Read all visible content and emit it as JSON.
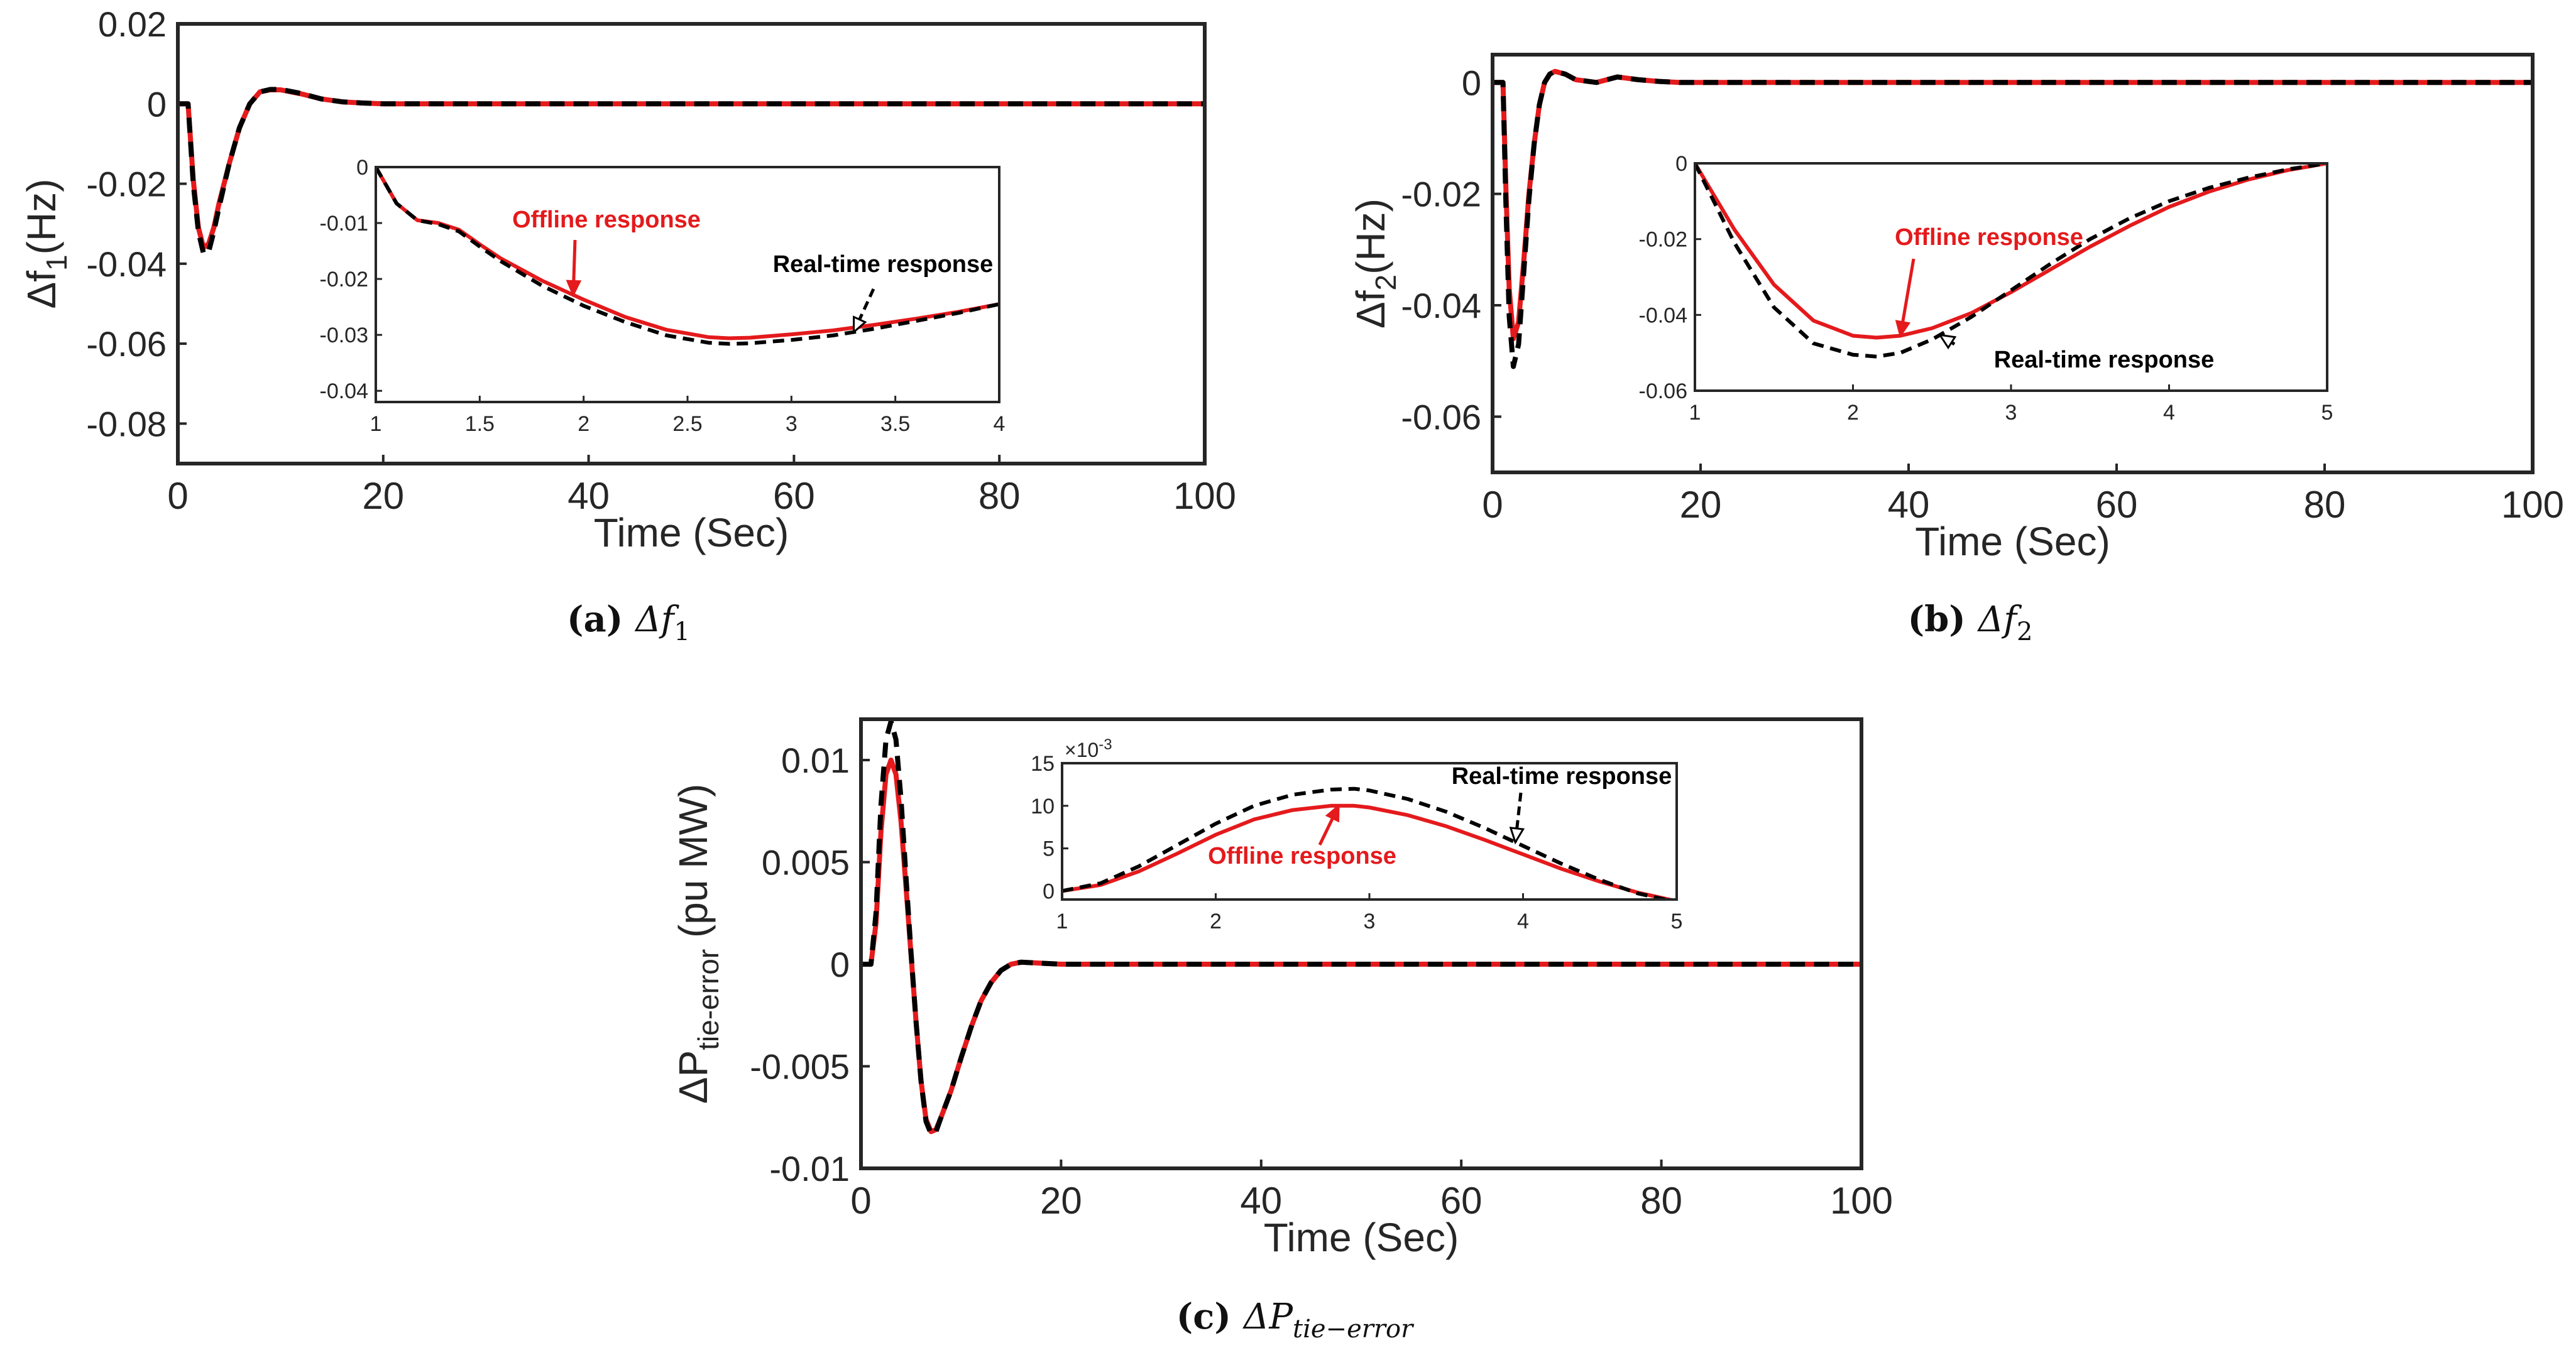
{
  "figure": {
    "colors": {
      "offline": "#e41a1c",
      "realtime": "#000000",
      "axis": "#262626"
    },
    "series_names": {
      "offline": "Offline response",
      "realtime": "Real-time response"
    }
  },
  "chart_data": [
    {
      "id": "a",
      "type": "line",
      "caption": {
        "label": "(a)",
        "symbol": "Δf",
        "sub": "1",
        "italic": true
      },
      "main": {
        "xlabel": "Time (Sec)",
        "ylabel": "Δf",
        "ylabel_sub": "1",
        "ylabel_suffix": "(Hz)",
        "xlim": [
          0,
          100
        ],
        "ylim": [
          -0.09,
          0.02
        ],
        "xticks": [
          0,
          20,
          40,
          60,
          80,
          100
        ],
        "yticks": [
          0.02,
          0,
          -0.02,
          -0.04,
          -0.06,
          -0.08
        ],
        "ytick_labels": [
          "0.02",
          "0",
          "-0.02",
          "-0.04",
          "-0.06",
          "-0.08"
        ],
        "series": [
          {
            "name": "Offline response",
            "x": [
              0,
              1,
              1.5,
              2,
              2.5,
              3,
              3.5,
              4,
              5,
              6,
              7,
              8,
              9,
              10,
              12,
              14,
              16,
              18,
              20,
              100
            ],
            "y": [
              0,
              0,
              -0.019,
              -0.031,
              -0.036,
              -0.035,
              -0.031,
              -0.025,
              -0.015,
              -0.006,
              0.0,
              0.003,
              0.0035,
              0.0035,
              0.0025,
              0.0012,
              0.0005,
              0.0002,
              0.0,
              0.0
            ]
          },
          {
            "name": "Real-time response",
            "x": [
              0,
              1,
              1.5,
              2,
              2.5,
              3,
              3.5,
              4,
              5,
              6,
              7,
              8,
              9,
              10,
              12,
              14,
              16,
              18,
              20,
              100
            ],
            "y": [
              0,
              0,
              -0.02,
              -0.032,
              -0.0375,
              -0.037,
              -0.032,
              -0.026,
              -0.015,
              -0.006,
              0.0,
              0.003,
              0.0036,
              0.0036,
              0.0026,
              0.0012,
              0.0005,
              0.0002,
              0.0,
              0.0
            ]
          }
        ]
      },
      "inset": {
        "xlim": [
          1,
          4
        ],
        "ylim": [
          -0.042,
          0
        ],
        "xticks": [
          1,
          1.5,
          2,
          2.5,
          3,
          3.5,
          4
        ],
        "xtick_labels": [
          "1",
          "1.5",
          "2",
          "2.5",
          "3",
          "3.5",
          "4"
        ],
        "yticks": [
          0,
          -0.01,
          -0.02,
          -0.03,
          -0.04
        ],
        "ytick_labels": [
          "0",
          "-0.01",
          "-0.02",
          "-0.03",
          "-0.04"
        ],
        "series": [
          {
            "name": "Offline response",
            "x": [
              1,
              1.1,
              1.2,
              1.3,
              1.4,
              1.5,
              1.6,
              1.8,
              2.0,
              2.2,
              2.4,
              2.6,
              2.7,
              2.8,
              3.0,
              3.2,
              3.4,
              3.6,
              3.8,
              4.0
            ],
            "y": [
              0,
              -0.0065,
              -0.0095,
              -0.01,
              -0.0112,
              -0.0138,
              -0.0163,
              -0.0203,
              -0.0237,
              -0.0268,
              -0.0291,
              -0.0304,
              -0.0306,
              -0.0305,
              -0.0299,
              -0.0292,
              -0.0282,
              -0.0271,
              -0.0259,
              -0.0245
            ]
          },
          {
            "name": "Real-time response",
            "x": [
              1,
              1.1,
              1.2,
              1.3,
              1.4,
              1.5,
              1.6,
              1.8,
              2.0,
              2.2,
              2.4,
              2.6,
              2.7,
              2.8,
              3.0,
              3.2,
              3.4,
              3.6,
              3.8,
              4.0
            ],
            "y": [
              0,
              -0.0065,
              -0.0095,
              -0.0102,
              -0.0115,
              -0.0142,
              -0.0168,
              -0.0212,
              -0.0248,
              -0.0277,
              -0.0301,
              -0.0314,
              -0.0316,
              -0.0315,
              -0.0309,
              -0.0301,
              -0.0289,
              -0.0275,
              -0.0261,
              -0.0245
            ]
          }
        ],
        "annotations": [
          {
            "text": "Offline response",
            "series": "Offline response",
            "at_x": 1.95
          },
          {
            "text": "Real-time response",
            "series": "Real-time response",
            "at_x": 3.3
          }
        ]
      }
    },
    {
      "id": "b",
      "type": "line",
      "caption": {
        "label": "(b)",
        "symbol": "Δf",
        "sub": "2",
        "italic": true
      },
      "main": {
        "xlabel": "Time (Sec)",
        "ylabel": "Δf",
        "ylabel_sub": "2",
        "ylabel_suffix": "(Hz)",
        "xlim": [
          0,
          100
        ],
        "ylim": [
          -0.07,
          0.005
        ],
        "xticks": [
          0,
          20,
          40,
          60,
          80,
          100
        ],
        "yticks": [
          0,
          -0.02,
          -0.04,
          -0.06
        ],
        "ytick_labels": [
          "0",
          "-0.02",
          "-0.04",
          "-0.06"
        ],
        "series": [
          {
            "name": "Offline response",
            "x": [
              0,
              1,
              1.3,
              1.6,
              2,
              2.5,
              3,
              3.5,
              4,
              4.5,
              5,
              5.5,
              6,
              7,
              8,
              10,
              12,
              14,
              16,
              18,
              20,
              100
            ],
            "y": [
              0,
              0,
              -0.02,
              -0.037,
              -0.046,
              -0.043,
              -0.032,
              -0.02,
              -0.011,
              -0.004,
              0.0,
              0.0015,
              0.002,
              0.0015,
              0.0005,
              0.0,
              0.001,
              0.0005,
              0.0002,
              0.0,
              0.0,
              0.0
            ]
          },
          {
            "name": "Real-time response",
            "x": [
              0,
              1,
              1.3,
              1.6,
              2,
              2.5,
              3,
              3.5,
              4,
              4.5,
              5,
              5.5,
              6,
              7,
              8,
              10,
              12,
              14,
              16,
              18,
              20,
              100
            ],
            "y": [
              0,
              0,
              -0.023,
              -0.042,
              -0.051,
              -0.047,
              -0.034,
              -0.021,
              -0.011,
              -0.004,
              0.0,
              0.0015,
              0.002,
              0.0015,
              0.0005,
              0.0,
              0.001,
              0.0005,
              0.0002,
              0.0,
              0.0,
              0.0
            ]
          }
        ]
      },
      "inset": {
        "xlim": [
          1,
          5
        ],
        "ylim": [
          -0.06,
          0
        ],
        "xticks": [
          1,
          2,
          3,
          4,
          5
        ],
        "xtick_labels": [
          "1",
          "2",
          "3",
          "4",
          "5"
        ],
        "yticks": [
          0,
          -0.02,
          -0.04,
          -0.06
        ],
        "ytick_labels": [
          "0",
          "-0.02",
          "-0.04",
          "-0.06"
        ],
        "series": [
          {
            "name": "Offline response",
            "x": [
              1,
              1.25,
              1.5,
              1.75,
              2.0,
              2.15,
              2.3,
              2.5,
              2.75,
              3.0,
              3.25,
              3.5,
              3.75,
              4.0,
              4.25,
              4.5,
              4.75,
              5.0
            ],
            "y": [
              0,
              -0.0175,
              -0.032,
              -0.0415,
              -0.0455,
              -0.046,
              -0.0455,
              -0.0435,
              -0.0395,
              -0.034,
              -0.028,
              -0.022,
              -0.0165,
              -0.0115,
              -0.0075,
              -0.0043,
              -0.0018,
              0.0
            ]
          },
          {
            "name": "Real-time response",
            "x": [
              1,
              1.25,
              1.5,
              1.75,
              2.0,
              2.15,
              2.3,
              2.5,
              2.75,
              3.0,
              3.25,
              3.5,
              3.75,
              4.0,
              4.25,
              4.5,
              4.75,
              5.0
            ],
            "y": [
              0,
              -0.021,
              -0.038,
              -0.0475,
              -0.0505,
              -0.051,
              -0.05,
              -0.0465,
              -0.0405,
              -0.0335,
              -0.0265,
              -0.02,
              -0.0145,
              -0.01,
              -0.0065,
              -0.0038,
              -0.0016,
              0.0
            ]
          }
        ],
        "annotations": [
          {
            "text": "Offline response",
            "series": "Offline response",
            "at_x": 2.3
          },
          {
            "text": "Real-time response",
            "series": "Real-time response",
            "at_x": 2.55
          }
        ]
      }
    },
    {
      "id": "c",
      "type": "line",
      "caption": {
        "label": "(c)",
        "symbol": "ΔP",
        "sub": "tie−error",
        "italic": true
      },
      "main": {
        "xlabel": "Time (Sec)",
        "ylabel": "ΔP",
        "ylabel_sub": "tie-error",
        "ylabel_suffix": " (pu MW)",
        "xlim": [
          0,
          100
        ],
        "ylim": [
          -0.01,
          0.012
        ],
        "xticks": [
          0,
          20,
          40,
          60,
          80,
          100
        ],
        "yticks": [
          0.01,
          0.005,
          0,
          -0.005,
          -0.01
        ],
        "ytick_labels": [
          "0.01",
          "0.005",
          "0",
          "-0.005",
          "-0.01"
        ],
        "series": [
          {
            "name": "Offline response",
            "x": [
              0,
              1,
              1.5,
              2,
              2.5,
              3,
              3.5,
              4,
              4.5,
              5,
              5.5,
              6,
              6.5,
              7,
              7.5,
              8,
              9,
              10,
              11,
              12,
              13,
              14,
              15,
              16,
              18,
              20,
              100
            ],
            "y": [
              0,
              0,
              0.002,
              0.0065,
              0.0093,
              0.01,
              0.0093,
              0.007,
              0.0038,
              0.0005,
              -0.0028,
              -0.0057,
              -0.0076,
              -0.0082,
              -0.0081,
              -0.0075,
              -0.0062,
              -0.0046,
              -0.0031,
              -0.0018,
              -0.0009,
              -0.0003,
              0.0,
              0.0001,
              5e-05,
              0.0,
              0.0
            ]
          },
          {
            "name": "Real-time response",
            "x": [
              0,
              1,
              1.5,
              2,
              2.5,
              3,
              3.5,
              4,
              4.5,
              5,
              5.5,
              6,
              6.5,
              7,
              7.5,
              8,
              9,
              10,
              11,
              12,
              13,
              14,
              15,
              16,
              18,
              20,
              100
            ],
            "y": [
              0,
              0,
              0.0025,
              0.0078,
              0.011,
              0.0119,
              0.011,
              0.0081,
              0.0043,
              0.0006,
              -0.0028,
              -0.0057,
              -0.0077,
              -0.0083,
              -0.0082,
              -0.0075,
              -0.0062,
              -0.0046,
              -0.0031,
              -0.0018,
              -0.0009,
              -0.0003,
              0.0,
              0.0001,
              5e-05,
              0.0,
              0.0
            ]
          }
        ]
      },
      "inset": {
        "xlim": [
          1,
          5
        ],
        "ylim": [
          -0.001,
          0.015
        ],
        "xticks": [
          1,
          2,
          3,
          4,
          5
        ],
        "xtick_labels": [
          "1",
          "2",
          "3",
          "4",
          "5"
        ],
        "yticks": [
          0.015,
          0.01,
          0.005,
          0
        ],
        "ytick_labels": [
          "15",
          "10",
          "5",
          "0"
        ],
        "multiplier": "×10",
        "multiplier_exp": "-3",
        "series": [
          {
            "name": "Offline response",
            "x": [
              1,
              1.25,
              1.5,
              1.75,
              2.0,
              2.25,
              2.5,
              2.75,
              2.9,
              3.0,
              3.25,
              3.5,
              3.75,
              4.0,
              4.25,
              4.5,
              4.75,
              5.0
            ],
            "y": [
              0.0,
              0.0007,
              0.0023,
              0.0044,
              0.0066,
              0.0084,
              0.0095,
              0.01,
              0.01,
              0.0098,
              0.0089,
              0.0076,
              0.006,
              0.0043,
              0.0026,
              0.0011,
              -0.0002,
              -0.0012
            ]
          },
          {
            "name": "Real-time response",
            "x": [
              1,
              1.25,
              1.5,
              1.75,
              2.0,
              2.25,
              2.5,
              2.75,
              2.9,
              3.0,
              3.25,
              3.5,
              3.75,
              4.0,
              4.25,
              4.5,
              4.75,
              5.0
            ],
            "y": [
              0.0,
              0.0009,
              0.0029,
              0.0054,
              0.0079,
              0.01,
              0.0113,
              0.0119,
              0.012,
              0.0118,
              0.0108,
              0.0093,
              0.0074,
              0.0053,
              0.0032,
              0.0013,
              -0.0003,
              -0.0013
            ]
          }
        ],
        "annotations": [
          {
            "text": "Offline response",
            "series": "Offline response",
            "at_x": 2.8
          },
          {
            "text": "Real-time response",
            "series": "Real-time response",
            "at_x": 3.95
          }
        ]
      }
    }
  ]
}
